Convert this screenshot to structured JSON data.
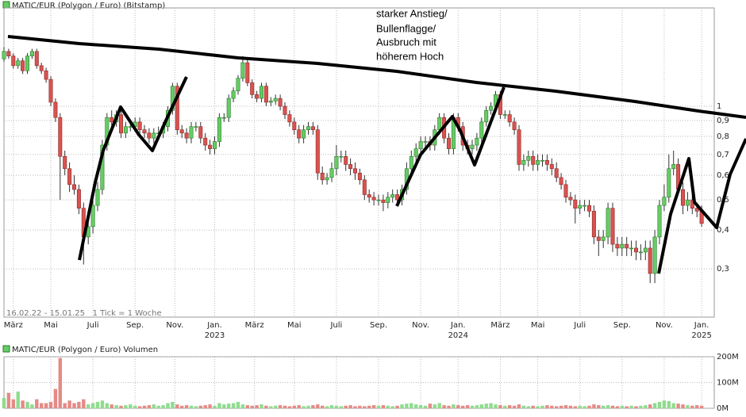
{
  "chart_data": [
    {
      "type": "candlestick",
      "title": "MATIC/EUR (Polygon / Euro) (Bitstamp)",
      "subtitle": "16.02.22 - 15.01.25   1 Tick = 1 Woche",
      "annotation": [
        "starker Anstieg/",
        "Bullenflagge/",
        "Ausbruch mit",
        "höherem Hoch"
      ],
      "up_color": "#66cc66",
      "down_color": "#d9534f",
      "log_scale": true,
      "grid": true,
      "ylim": [
        0.21,
        2.07
      ],
      "yticks": [
        {
          "value": 0.3,
          "label": "0,3"
        },
        {
          "value": 0.4,
          "label": "0,4"
        },
        {
          "value": 0.5,
          "label": "0,5"
        },
        {
          "value": 0.6,
          "label": "0,6"
        },
        {
          "value": 0.7,
          "label": "0,7"
        },
        {
          "value": 0.8,
          "label": "0,8"
        },
        {
          "value": 0.9,
          "label": "0,9"
        },
        1
      ],
      "xticks": [
        {
          "value": 2,
          "label": "März"
        },
        {
          "value": 10,
          "label": "Mai"
        },
        {
          "value": 19,
          "label": "Juli"
        },
        {
          "value": 28,
          "label": "Sep."
        },
        {
          "value": 36.5,
          "label": "Nov."
        },
        {
          "value": 45,
          "label": "Jan."
        },
        {
          "value": 53.5,
          "label": "März"
        },
        {
          "value": 62,
          "label": "Mai"
        },
        {
          "value": 71,
          "label": "Juli"
        },
        {
          "value": 80,
          "label": "Sep."
        },
        {
          "value": 89,
          "label": "Nov."
        },
        {
          "value": 97,
          "label": "Jan."
        },
        {
          "value": 106,
          "label": "März"
        },
        {
          "value": 114,
          "label": "Mai"
        },
        {
          "value": 123,
          "label": "Juli"
        },
        {
          "value": 132,
          "label": "Sep."
        },
        {
          "value": 141,
          "label": "Nov."
        },
        {
          "value": 149,
          "label": "Jan."
        }
      ],
      "xtick_years": [
        {
          "value": 45,
          "label": "2023"
        },
        {
          "value": 97,
          "label": "2024"
        },
        {
          "value": 149,
          "label": "2025"
        }
      ],
      "candles": [
        [
          1.42,
          1.55,
          1.39,
          1.5
        ],
        [
          1.5,
          1.53,
          1.42,
          1.45
        ],
        [
          1.45,
          1.48,
          1.32,
          1.35
        ],
        [
          1.35,
          1.43,
          1.32,
          1.4
        ],
        [
          1.4,
          1.43,
          1.27,
          1.3
        ],
        [
          1.3,
          1.48,
          1.27,
          1.45
        ],
        [
          1.45,
          1.53,
          1.42,
          1.5
        ],
        [
          1.5,
          1.53,
          1.32,
          1.35
        ],
        [
          1.35,
          1.38,
          1.27,
          1.3
        ],
        [
          1.3,
          1.33,
          1.19,
          1.22
        ],
        [
          1.22,
          1.25,
          1.0,
          1.03
        ],
        [
          1.03,
          1.06,
          0.89,
          0.92
        ],
        [
          0.92,
          0.95,
          0.5,
          0.69
        ],
        [
          0.69,
          0.72,
          0.6,
          0.63
        ],
        [
          0.63,
          0.66,
          0.53,
          0.56
        ],
        [
          0.56,
          0.6,
          0.52,
          0.54
        ],
        [
          0.54,
          0.56,
          0.45,
          0.47
        ],
        [
          0.47,
          0.49,
          0.31,
          0.38
        ],
        [
          0.38,
          0.43,
          0.36,
          0.41
        ],
        [
          0.41,
          0.5,
          0.39,
          0.48
        ],
        [
          0.48,
          0.57,
          0.46,
          0.54
        ],
        [
          0.54,
          0.78,
          0.52,
          0.75
        ],
        [
          0.75,
          0.95,
          0.72,
          0.92
        ],
        [
          0.92,
          0.97,
          0.86,
          0.89
        ],
        [
          0.89,
          0.97,
          0.86,
          0.94
        ],
        [
          0.94,
          0.97,
          0.79,
          0.82
        ],
        [
          0.82,
          0.89,
          0.79,
          0.86
        ],
        [
          0.86,
          0.9,
          0.83,
          0.86
        ],
        [
          0.86,
          0.92,
          0.83,
          0.89
        ],
        [
          0.89,
          0.92,
          0.81,
          0.84
        ],
        [
          0.84,
          0.87,
          0.79,
          0.82
        ],
        [
          0.82,
          0.85,
          0.76,
          0.79
        ],
        [
          0.79,
          0.85,
          0.76,
          0.82
        ],
        [
          0.82,
          0.86,
          0.79,
          0.82
        ],
        [
          0.82,
          0.89,
          0.79,
          0.86
        ],
        [
          0.86,
          1.0,
          0.83,
          0.97
        ],
        [
          0.97,
          1.19,
          0.94,
          1.16
        ],
        [
          1.16,
          1.19,
          0.81,
          0.84
        ],
        [
          0.84,
          0.87,
          0.79,
          0.82
        ],
        [
          0.82,
          0.85,
          0.76,
          0.79
        ],
        [
          0.79,
          0.89,
          0.76,
          0.86
        ],
        [
          0.86,
          0.89,
          0.83,
          0.86
        ],
        [
          0.86,
          0.89,
          0.76,
          0.79
        ],
        [
          0.79,
          0.82,
          0.72,
          0.75
        ],
        [
          0.75,
          0.78,
          0.7,
          0.73
        ],
        [
          0.73,
          0.8,
          0.7,
          0.77
        ],
        [
          0.77,
          0.95,
          0.74,
          0.92
        ],
        [
          0.92,
          0.95,
          0.89,
          0.92
        ],
        [
          0.92,
          1.09,
          0.89,
          1.06
        ],
        [
          1.06,
          1.15,
          1.03,
          1.12
        ],
        [
          1.12,
          1.26,
          1.09,
          1.23
        ],
        [
          1.23,
          1.45,
          1.2,
          1.38
        ],
        [
          1.38,
          1.41,
          1.16,
          1.19
        ],
        [
          1.19,
          1.22,
          1.06,
          1.09
        ],
        [
          1.09,
          1.12,
          1.03,
          1.06
        ],
        [
          1.06,
          1.19,
          1.03,
          1.16
        ],
        [
          1.16,
          1.19,
          1.0,
          1.03
        ],
        [
          1.03,
          1.07,
          1.0,
          1.04
        ],
        [
          1.04,
          1.09,
          1.01,
          1.06
        ],
        [
          1.06,
          1.09,
          0.97,
          1.0
        ],
        [
          1.0,
          1.03,
          0.91,
          0.94
        ],
        [
          0.94,
          0.97,
          0.86,
          0.89
        ],
        [
          0.89,
          0.92,
          0.81,
          0.84
        ],
        [
          0.84,
          0.87,
          0.76,
          0.79
        ],
        [
          0.79,
          0.87,
          0.76,
          0.84
        ],
        [
          0.84,
          0.89,
          0.81,
          0.86
        ],
        [
          0.86,
          0.89,
          0.81,
          0.84
        ],
        [
          0.84,
          0.87,
          0.58,
          0.61
        ],
        [
          0.61,
          0.64,
          0.56,
          0.58
        ],
        [
          0.58,
          0.61,
          0.56,
          0.59
        ],
        [
          0.59,
          0.66,
          0.57,
          0.63
        ],
        [
          0.63,
          0.75,
          0.6,
          0.69
        ],
        [
          0.69,
          0.72,
          0.66,
          0.69
        ],
        [
          0.69,
          0.72,
          0.62,
          0.65
        ],
        [
          0.65,
          0.68,
          0.6,
          0.63
        ],
        [
          0.63,
          0.66,
          0.58,
          0.61
        ],
        [
          0.61,
          0.63,
          0.56,
          0.58
        ],
        [
          0.58,
          0.6,
          0.5,
          0.52
        ],
        [
          0.52,
          0.54,
          0.49,
          0.51
        ],
        [
          0.51,
          0.53,
          0.48,
          0.5
        ],
        [
          0.5,
          0.52,
          0.48,
          0.5
        ],
        [
          0.5,
          0.52,
          0.46,
          0.49
        ],
        [
          0.49,
          0.53,
          0.47,
          0.51
        ],
        [
          0.51,
          0.54,
          0.49,
          0.52
        ],
        [
          0.52,
          0.54,
          0.48,
          0.5
        ],
        [
          0.5,
          0.56,
          0.48,
          0.54
        ],
        [
          0.54,
          0.66,
          0.52,
          0.63
        ],
        [
          0.63,
          0.72,
          0.6,
          0.69
        ],
        [
          0.69,
          0.76,
          0.66,
          0.73
        ],
        [
          0.73,
          0.8,
          0.7,
          0.77
        ],
        [
          0.77,
          0.8,
          0.74,
          0.77
        ],
        [
          0.77,
          0.8,
          0.72,
          0.75
        ],
        [
          0.75,
          0.87,
          0.72,
          0.84
        ],
        [
          0.84,
          0.95,
          0.81,
          0.92
        ],
        [
          0.92,
          0.95,
          0.76,
          0.79
        ],
        [
          0.79,
          0.82,
          0.7,
          0.73
        ],
        [
          0.73,
          0.95,
          0.7,
          0.92
        ],
        [
          0.92,
          0.95,
          0.83,
          0.86
        ],
        [
          0.86,
          0.89,
          0.72,
          0.75
        ],
        [
          0.75,
          0.78,
          0.7,
          0.73
        ],
        [
          0.73,
          0.78,
          0.7,
          0.75
        ],
        [
          0.75,
          0.82,
          0.72,
          0.79
        ],
        [
          0.79,
          0.92,
          0.76,
          0.89
        ],
        [
          0.89,
          1.0,
          0.86,
          0.97
        ],
        [
          0.97,
          1.03,
          0.94,
          1.0
        ],
        [
          1.0,
          1.12,
          0.97,
          1.09
        ],
        [
          1.09,
          1.12,
          0.91,
          0.94
        ],
        [
          0.94,
          0.97,
          0.91,
          0.94
        ],
        [
          0.94,
          0.97,
          0.86,
          0.89
        ],
        [
          0.89,
          0.92,
          0.81,
          0.84
        ],
        [
          0.84,
          0.87,
          0.62,
          0.65
        ],
        [
          0.65,
          0.7,
          0.62,
          0.67
        ],
        [
          0.67,
          0.72,
          0.64,
          0.69
        ],
        [
          0.69,
          0.72,
          0.62,
          0.65
        ],
        [
          0.65,
          0.7,
          0.62,
          0.67
        ],
        [
          0.67,
          0.7,
          0.64,
          0.67
        ],
        [
          0.67,
          0.7,
          0.62,
          0.65
        ],
        [
          0.65,
          0.68,
          0.6,
          0.63
        ],
        [
          0.63,
          0.66,
          0.57,
          0.59
        ],
        [
          0.59,
          0.61,
          0.54,
          0.56
        ],
        [
          0.56,
          0.58,
          0.49,
          0.51
        ],
        [
          0.51,
          0.53,
          0.48,
          0.5
        ],
        [
          0.5,
          0.52,
          0.42,
          0.47
        ],
        [
          0.47,
          0.5,
          0.45,
          0.48
        ],
        [
          0.48,
          0.5,
          0.46,
          0.48
        ],
        [
          0.48,
          0.5,
          0.44,
          0.46
        ],
        [
          0.46,
          0.48,
          0.36,
          0.38
        ],
        [
          0.38,
          0.4,
          0.33,
          0.37
        ],
        [
          0.37,
          0.4,
          0.35,
          0.38
        ],
        [
          0.38,
          0.49,
          0.36,
          0.47
        ],
        [
          0.47,
          0.49,
          0.34,
          0.36
        ],
        [
          0.36,
          0.38,
          0.33,
          0.35
        ],
        [
          0.35,
          0.38,
          0.33,
          0.36
        ],
        [
          0.36,
          0.38,
          0.33,
          0.35
        ],
        [
          0.35,
          0.37,
          0.33,
          0.35
        ],
        [
          0.35,
          0.37,
          0.32,
          0.34
        ],
        [
          0.34,
          0.36,
          0.32,
          0.34
        ],
        [
          0.34,
          0.37,
          0.32,
          0.35
        ],
        [
          0.35,
          0.37,
          0.27,
          0.29
        ],
        [
          0.29,
          0.4,
          0.27,
          0.38
        ],
        [
          0.38,
          0.5,
          0.36,
          0.48
        ],
        [
          0.48,
          0.56,
          0.46,
          0.51
        ],
        [
          0.51,
          0.7,
          0.49,
          0.63
        ],
        [
          0.63,
          0.72,
          0.6,
          0.65
        ],
        [
          0.65,
          0.68,
          0.52,
          0.54
        ],
        [
          0.54,
          0.57,
          0.45,
          0.48
        ],
        [
          0.48,
          0.53,
          0.46,
          0.5
        ],
        [
          0.5,
          0.52,
          0.45,
          0.47
        ],
        [
          0.47,
          0.49,
          0.44,
          0.46
        ],
        [
          0.46,
          0.48,
          0.41,
          0.42
        ]
      ]
    },
    {
      "type": "bar",
      "title": "MATIC/EUR (Polygon / Euro) Volumen",
      "up_color": "#8fdc8f",
      "down_color": "#e58a87",
      "ylim": [
        0,
        200
      ],
      "yticks": [
        {
          "value": 0,
          "label": "0M"
        },
        {
          "value": 100,
          "label": "100M"
        },
        {
          "value": 200,
          "label": "200M"
        }
      ],
      "values": [
        40,
        60,
        35,
        65,
        30,
        25,
        15,
        35,
        20,
        20,
        25,
        75,
        195,
        20,
        30,
        20,
        25,
        35,
        15,
        20,
        25,
        30,
        20,
        15,
        12,
        10,
        12,
        15,
        10,
        8,
        10,
        12,
        15,
        10,
        12,
        20,
        25,
        15,
        10,
        12,
        10,
        8,
        10,
        12,
        15,
        10,
        20,
        15,
        18,
        20,
        25,
        15,
        12,
        10,
        12,
        15,
        10,
        8,
        10,
        12,
        10,
        8,
        10,
        12,
        8,
        10,
        12,
        15,
        10,
        8,
        12,
        10,
        8,
        10,
        12,
        8,
        10,
        8,
        10,
        12,
        10,
        12,
        10,
        8,
        10,
        15,
        18,
        20,
        15,
        12,
        10,
        18,
        15,
        20,
        12,
        10,
        15,
        12,
        10,
        12,
        10,
        12,
        15,
        18,
        20,
        15,
        12,
        10,
        12,
        10,
        15,
        10,
        8,
        10,
        8,
        10,
        12,
        10,
        8,
        10,
        12,
        10,
        8,
        10,
        8,
        10,
        15,
        12,
        10,
        12,
        10,
        8,
        10,
        8,
        10,
        8,
        10,
        12,
        15,
        20,
        25,
        30,
        28,
        20,
        18,
        15,
        12,
        10,
        12,
        10
      ]
    }
  ]
}
